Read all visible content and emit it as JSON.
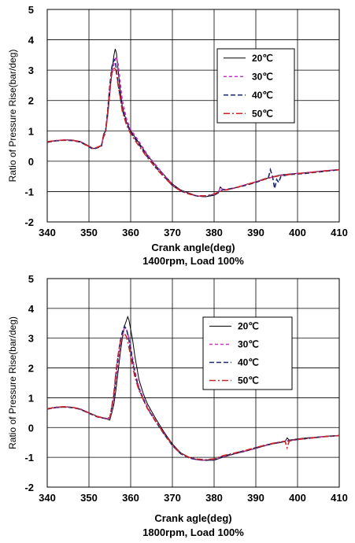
{
  "chart_data": [
    {
      "type": "line",
      "xlabel": "Crank angle(deg)",
      "ylabel": "Ratio of Pressure Rise(bar/deg)",
      "caption": "1400rpm, Load 100%",
      "xlim": [
        340,
        410
      ],
      "ylim": [
        -2,
        5
      ],
      "xticks": [
        "340",
        "350",
        "360",
        "370",
        "380",
        "390",
        "400",
        "410"
      ],
      "yticks": [
        "-2",
        "-1",
        "0",
        "1",
        "2",
        "3",
        "4",
        "5"
      ],
      "grid": true,
      "legend_position": "top-right",
      "series": [
        {
          "name": "20℃",
          "color": "#000000",
          "dash": "",
          "x": [
            340,
            342,
            344,
            346,
            348,
            350,
            351,
            352,
            353,
            353.5,
            354,
            354.5,
            355,
            355.5,
            356,
            356.3,
            356.6,
            357,
            357.5,
            358,
            359,
            360,
            362,
            364,
            366,
            368,
            370,
            372,
            374,
            376,
            378,
            380,
            381,
            381.5,
            382,
            383,
            385,
            388,
            390,
            392,
            393,
            394,
            395,
            396,
            398,
            400,
            402,
            404,
            406,
            408,
            410
          ],
          "y": [
            0.65,
            0.68,
            0.7,
            0.7,
            0.65,
            0.5,
            0.42,
            0.45,
            0.5,
            0.9,
            1.0,
            1.5,
            2.2,
            3.0,
            3.5,
            3.7,
            3.55,
            3.0,
            2.3,
            1.8,
            1.3,
            1.0,
            0.6,
            0.2,
            -0.15,
            -0.45,
            -0.75,
            -0.95,
            -1.05,
            -1.15,
            -1.17,
            -1.12,
            -1.05,
            -0.85,
            -0.92,
            -0.95,
            -0.88,
            -0.75,
            -0.68,
            -0.58,
            -0.55,
            -0.52,
            -0.48,
            -0.45,
            -0.42,
            -0.4,
            -0.38,
            -0.35,
            -0.32,
            -0.3,
            -0.28
          ]
        },
        {
          "name": "30℃",
          "color": "#cc33cc",
          "dash": "4,3",
          "x": [
            340,
            342,
            344,
            346,
            348,
            350,
            351,
            352,
            353,
            353.5,
            354,
            354.5,
            355,
            355.5,
            356,
            356.5,
            357,
            357.5,
            358,
            359,
            360,
            362,
            364,
            366,
            368,
            370,
            372,
            374,
            376,
            378,
            380,
            381,
            381.5,
            382,
            383,
            385,
            388,
            390,
            392,
            394,
            396,
            398,
            400,
            402,
            404,
            406,
            408,
            410
          ],
          "y": [
            0.63,
            0.67,
            0.7,
            0.69,
            0.64,
            0.48,
            0.4,
            0.45,
            0.52,
            0.85,
            1.0,
            1.6,
            2.3,
            2.9,
            3.2,
            3.45,
            3.2,
            2.6,
            2.0,
            1.4,
            1.05,
            0.65,
            0.22,
            -0.12,
            -0.45,
            -0.78,
            -0.97,
            -1.07,
            -1.15,
            -1.15,
            -1.1,
            -1.02,
            -0.88,
            -0.92,
            -0.95,
            -0.88,
            -0.76,
            -0.68,
            -0.6,
            -0.52,
            -0.46,
            -0.43,
            -0.4,
            -0.38,
            -0.35,
            -0.32,
            -0.3,
            -0.28
          ]
        },
        {
          "name": "40℃",
          "color": "#1a2a6c",
          "dash": "6,3",
          "x": [
            340,
            342,
            344,
            346,
            348,
            350,
            351,
            352,
            353,
            353.5,
            354,
            354.5,
            355,
            355.5,
            356,
            356.3,
            356.6,
            357,
            357.5,
            358,
            359,
            360,
            362,
            364,
            366,
            368,
            370,
            372,
            374,
            376,
            378,
            380,
            382,
            384,
            386,
            388,
            390,
            392,
            393,
            393.5,
            394,
            394.5,
            395,
            395.5,
            396,
            398,
            400,
            402,
            404,
            406,
            408,
            410
          ],
          "y": [
            0.62,
            0.67,
            0.69,
            0.68,
            0.63,
            0.47,
            0.4,
            0.44,
            0.5,
            0.85,
            1.0,
            1.7,
            2.5,
            3.1,
            3.35,
            3.3,
            3.0,
            2.55,
            2.1,
            1.7,
            1.25,
            0.95,
            0.55,
            0.15,
            -0.2,
            -0.5,
            -0.8,
            -0.98,
            -1.08,
            -1.15,
            -1.16,
            -1.1,
            -0.95,
            -0.9,
            -0.85,
            -0.78,
            -0.7,
            -0.6,
            -0.55,
            -0.28,
            -0.5,
            -0.9,
            -0.6,
            -0.7,
            -0.5,
            -0.44,
            -0.42,
            -0.4,
            -0.37,
            -0.34,
            -0.31,
            -0.28
          ]
        },
        {
          "name": "50℃",
          "color": "#cc2222",
          "dash": "8,3,2,3",
          "x": [
            340,
            342,
            344,
            346,
            348,
            350,
            351,
            352,
            353,
            353.5,
            354,
            354.5,
            355,
            355.5,
            356,
            356.3,
            356.6,
            357,
            357.5,
            358,
            359,
            360,
            362,
            364,
            366,
            368,
            370,
            372,
            374,
            376,
            378,
            380,
            382,
            385,
            388,
            390,
            392,
            394,
            396,
            398,
            400,
            402,
            404,
            406,
            408,
            410
          ],
          "y": [
            0.64,
            0.68,
            0.7,
            0.69,
            0.64,
            0.49,
            0.42,
            0.46,
            0.52,
            0.8,
            0.95,
            1.6,
            2.4,
            2.9,
            3.05,
            3.1,
            2.9,
            2.5,
            2.1,
            1.65,
            1.2,
            0.9,
            0.5,
            0.12,
            -0.22,
            -0.52,
            -0.8,
            -0.98,
            -1.08,
            -1.14,
            -1.14,
            -1.08,
            -0.97,
            -0.88,
            -0.76,
            -0.68,
            -0.6,
            -0.52,
            -0.47,
            -0.44,
            -0.41,
            -0.38,
            -0.36,
            -0.33,
            -0.3,
            -0.28
          ]
        }
      ]
    },
    {
      "type": "line",
      "xlabel": "Crank agle(deg)",
      "ylabel": "Ratio of Pressure Rise(bar/deg)",
      "caption": "1800rpm, Load 100%",
      "xlim": [
        340,
        410
      ],
      "ylim": [
        -2,
        5
      ],
      "xticks": [
        "340",
        "350",
        "360",
        "370",
        "380",
        "390",
        "400",
        "410"
      ],
      "yticks": [
        "-2",
        "-1",
        "0",
        "1",
        "2",
        "3",
        "4",
        "5"
      ],
      "grid": true,
      "legend_position": "top-right",
      "series": [
        {
          "name": "20℃",
          "color": "#000000",
          "dash": "",
          "x": [
            340,
            342,
            344,
            346,
            348,
            350,
            352,
            354,
            355,
            355.5,
            356,
            356.5,
            357,
            357.5,
            358,
            358.5,
            359,
            359.3,
            359.6,
            360,
            360.5,
            361,
            362,
            363,
            364,
            366,
            368,
            370,
            372,
            374,
            376,
            378,
            380,
            382,
            385,
            388,
            390,
            392,
            394,
            396,
            397,
            397.5,
            398,
            400,
            402,
            404,
            406,
            408,
            410
          ],
          "y": [
            0.63,
            0.68,
            0.7,
            0.68,
            0.62,
            0.5,
            0.38,
            0.3,
            0.25,
            0.5,
            0.8,
            1.3,
            1.9,
            2.5,
            3.0,
            3.4,
            3.6,
            3.72,
            3.6,
            3.3,
            2.9,
            2.4,
            1.6,
            1.15,
            0.8,
            0.3,
            -0.15,
            -0.55,
            -0.85,
            -1.0,
            -1.08,
            -1.1,
            -1.1,
            -1.0,
            -0.88,
            -0.78,
            -0.7,
            -0.62,
            -0.55,
            -0.5,
            -0.47,
            -0.35,
            -0.42,
            -0.38,
            -0.35,
            -0.33,
            -0.3,
            -0.28,
            -0.27
          ]
        },
        {
          "name": "30℃",
          "color": "#cc33cc",
          "dash": "4,3",
          "x": [
            340,
            342,
            344,
            346,
            348,
            350,
            352,
            354,
            355,
            355.5,
            356,
            356.5,
            357,
            357.5,
            358,
            358.5,
            359,
            359.5,
            360,
            360.5,
            361,
            362,
            363,
            364,
            366,
            368,
            370,
            372,
            374,
            376,
            378,
            380,
            382,
            385,
            388,
            390,
            392,
            394,
            396,
            398,
            400,
            402,
            404,
            406,
            408,
            410
          ],
          "y": [
            0.62,
            0.67,
            0.69,
            0.67,
            0.61,
            0.48,
            0.36,
            0.3,
            0.3,
            0.6,
            1.0,
            1.6,
            2.2,
            2.75,
            3.1,
            3.35,
            3.3,
            3.05,
            2.7,
            2.3,
            1.9,
            1.35,
            1.0,
            0.7,
            0.22,
            -0.2,
            -0.6,
            -0.88,
            -1.02,
            -1.08,
            -1.1,
            -1.08,
            -0.98,
            -0.87,
            -0.77,
            -0.69,
            -0.61,
            -0.54,
            -0.49,
            -0.44,
            -0.4,
            -0.37,
            -0.34,
            -0.31,
            -0.29,
            -0.27
          ]
        },
        {
          "name": "40℃",
          "color": "#1a2a6c",
          "dash": "6,3",
          "x": [
            340,
            342,
            344,
            346,
            348,
            350,
            352,
            354,
            355,
            355.5,
            356,
            356.5,
            357,
            357.5,
            358,
            358.5,
            359,
            359.5,
            360,
            360.5,
            361,
            362,
            363,
            364,
            366,
            368,
            370,
            372,
            374,
            376,
            378,
            380,
            382,
            385,
            388,
            390,
            392,
            394,
            396,
            398,
            400,
            402,
            404,
            406,
            408,
            410
          ],
          "y": [
            0.62,
            0.67,
            0.69,
            0.67,
            0.61,
            0.48,
            0.36,
            0.3,
            0.32,
            0.7,
            1.1,
            1.8,
            2.4,
            2.9,
            3.2,
            3.4,
            3.3,
            3.0,
            2.6,
            2.2,
            1.8,
            1.3,
            0.95,
            0.65,
            0.2,
            -0.22,
            -0.6,
            -0.88,
            -1.02,
            -1.08,
            -1.1,
            -1.07,
            -0.97,
            -0.86,
            -0.76,
            -0.68,
            -0.6,
            -0.54,
            -0.49,
            -0.44,
            -0.4,
            -0.37,
            -0.34,
            -0.31,
            -0.29,
            -0.27
          ]
        },
        {
          "name": "50℃",
          "color": "#cc2222",
          "dash": "8,3,2,3",
          "x": [
            340,
            342,
            344,
            346,
            348,
            350,
            352,
            354,
            355,
            355.5,
            356,
            356.5,
            357,
            357.5,
            358,
            358.5,
            359,
            359.5,
            360,
            360.5,
            361,
            362,
            363,
            364,
            366,
            368,
            370,
            372,
            374,
            376,
            378,
            380,
            382,
            385,
            388,
            390,
            392,
            394,
            396,
            397,
            397.5,
            398,
            400,
            402,
            404,
            406,
            408,
            410
          ],
          "y": [
            0.63,
            0.68,
            0.7,
            0.68,
            0.62,
            0.49,
            0.37,
            0.31,
            0.33,
            0.7,
            1.2,
            1.9,
            2.45,
            2.85,
            3.05,
            3.15,
            3.05,
            2.75,
            2.4,
            2.05,
            1.7,
            1.25,
            0.95,
            0.65,
            0.22,
            -0.2,
            -0.58,
            -0.86,
            -1.0,
            -1.06,
            -1.08,
            -1.05,
            -0.95,
            -0.85,
            -0.75,
            -0.67,
            -0.6,
            -0.53,
            -0.48,
            -0.46,
            -0.68,
            -0.45,
            -0.4,
            -0.37,
            -0.34,
            -0.31,
            -0.29,
            -0.27
          ]
        }
      ]
    }
  ]
}
